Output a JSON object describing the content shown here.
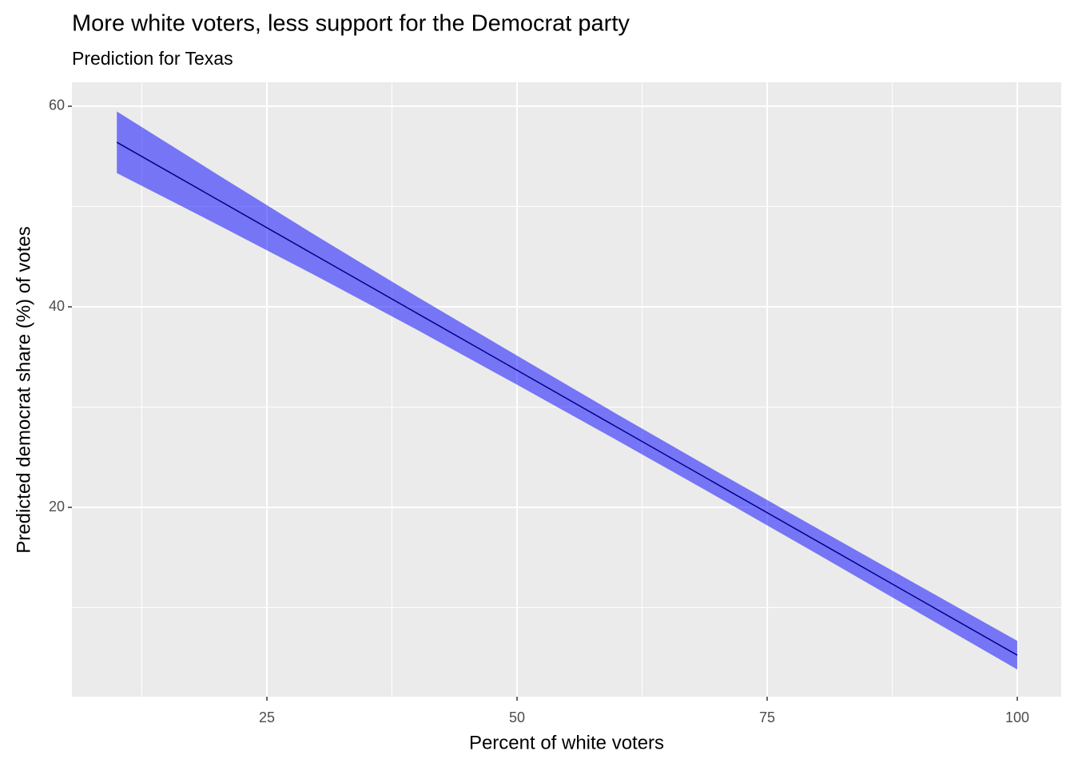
{
  "chart_data": {
    "type": "line",
    "title": "More white voters, less support for the Democrat party",
    "subtitle": "Prediction for Texas",
    "x_label": "Percent of white voters",
    "y_label": "Predicted democrat share (%) of votes",
    "x": [
      10,
      20,
      30,
      40,
      50,
      60,
      70,
      80,
      90,
      100
    ],
    "series": [
      {
        "color": "#00008b",
        "values": [
          56.41,
          50.73,
          45.04,
          39.36,
          33.68,
          27.99,
          22.31,
          16.63,
          10.94,
          5.26
        ],
        "lower": [
          53.34,
          48.23,
          43.04,
          37.71,
          32.23,
          26.69,
          21.06,
          15.35,
          9.59,
          3.83
        ],
        "upper": [
          59.48,
          53.23,
          47.04,
          41.01,
          35.13,
          29.29,
          23.56,
          17.91,
          12.29,
          6.69
        ],
        "band_color": "#0000ff",
        "band_opacity": 0.5
      }
    ],
    "xlim": [
      5.51,
      104.39
    ],
    "ylim": [
      1.12,
      62.39
    ],
    "xticks": [
      25,
      50,
      75,
      100
    ],
    "yticks": [
      20,
      40,
      60
    ],
    "x_minor_ticks": [
      12.5,
      37.5,
      62.5,
      87.5
    ],
    "y_minor_ticks": [
      10,
      30,
      50
    ],
    "grid": true
  }
}
